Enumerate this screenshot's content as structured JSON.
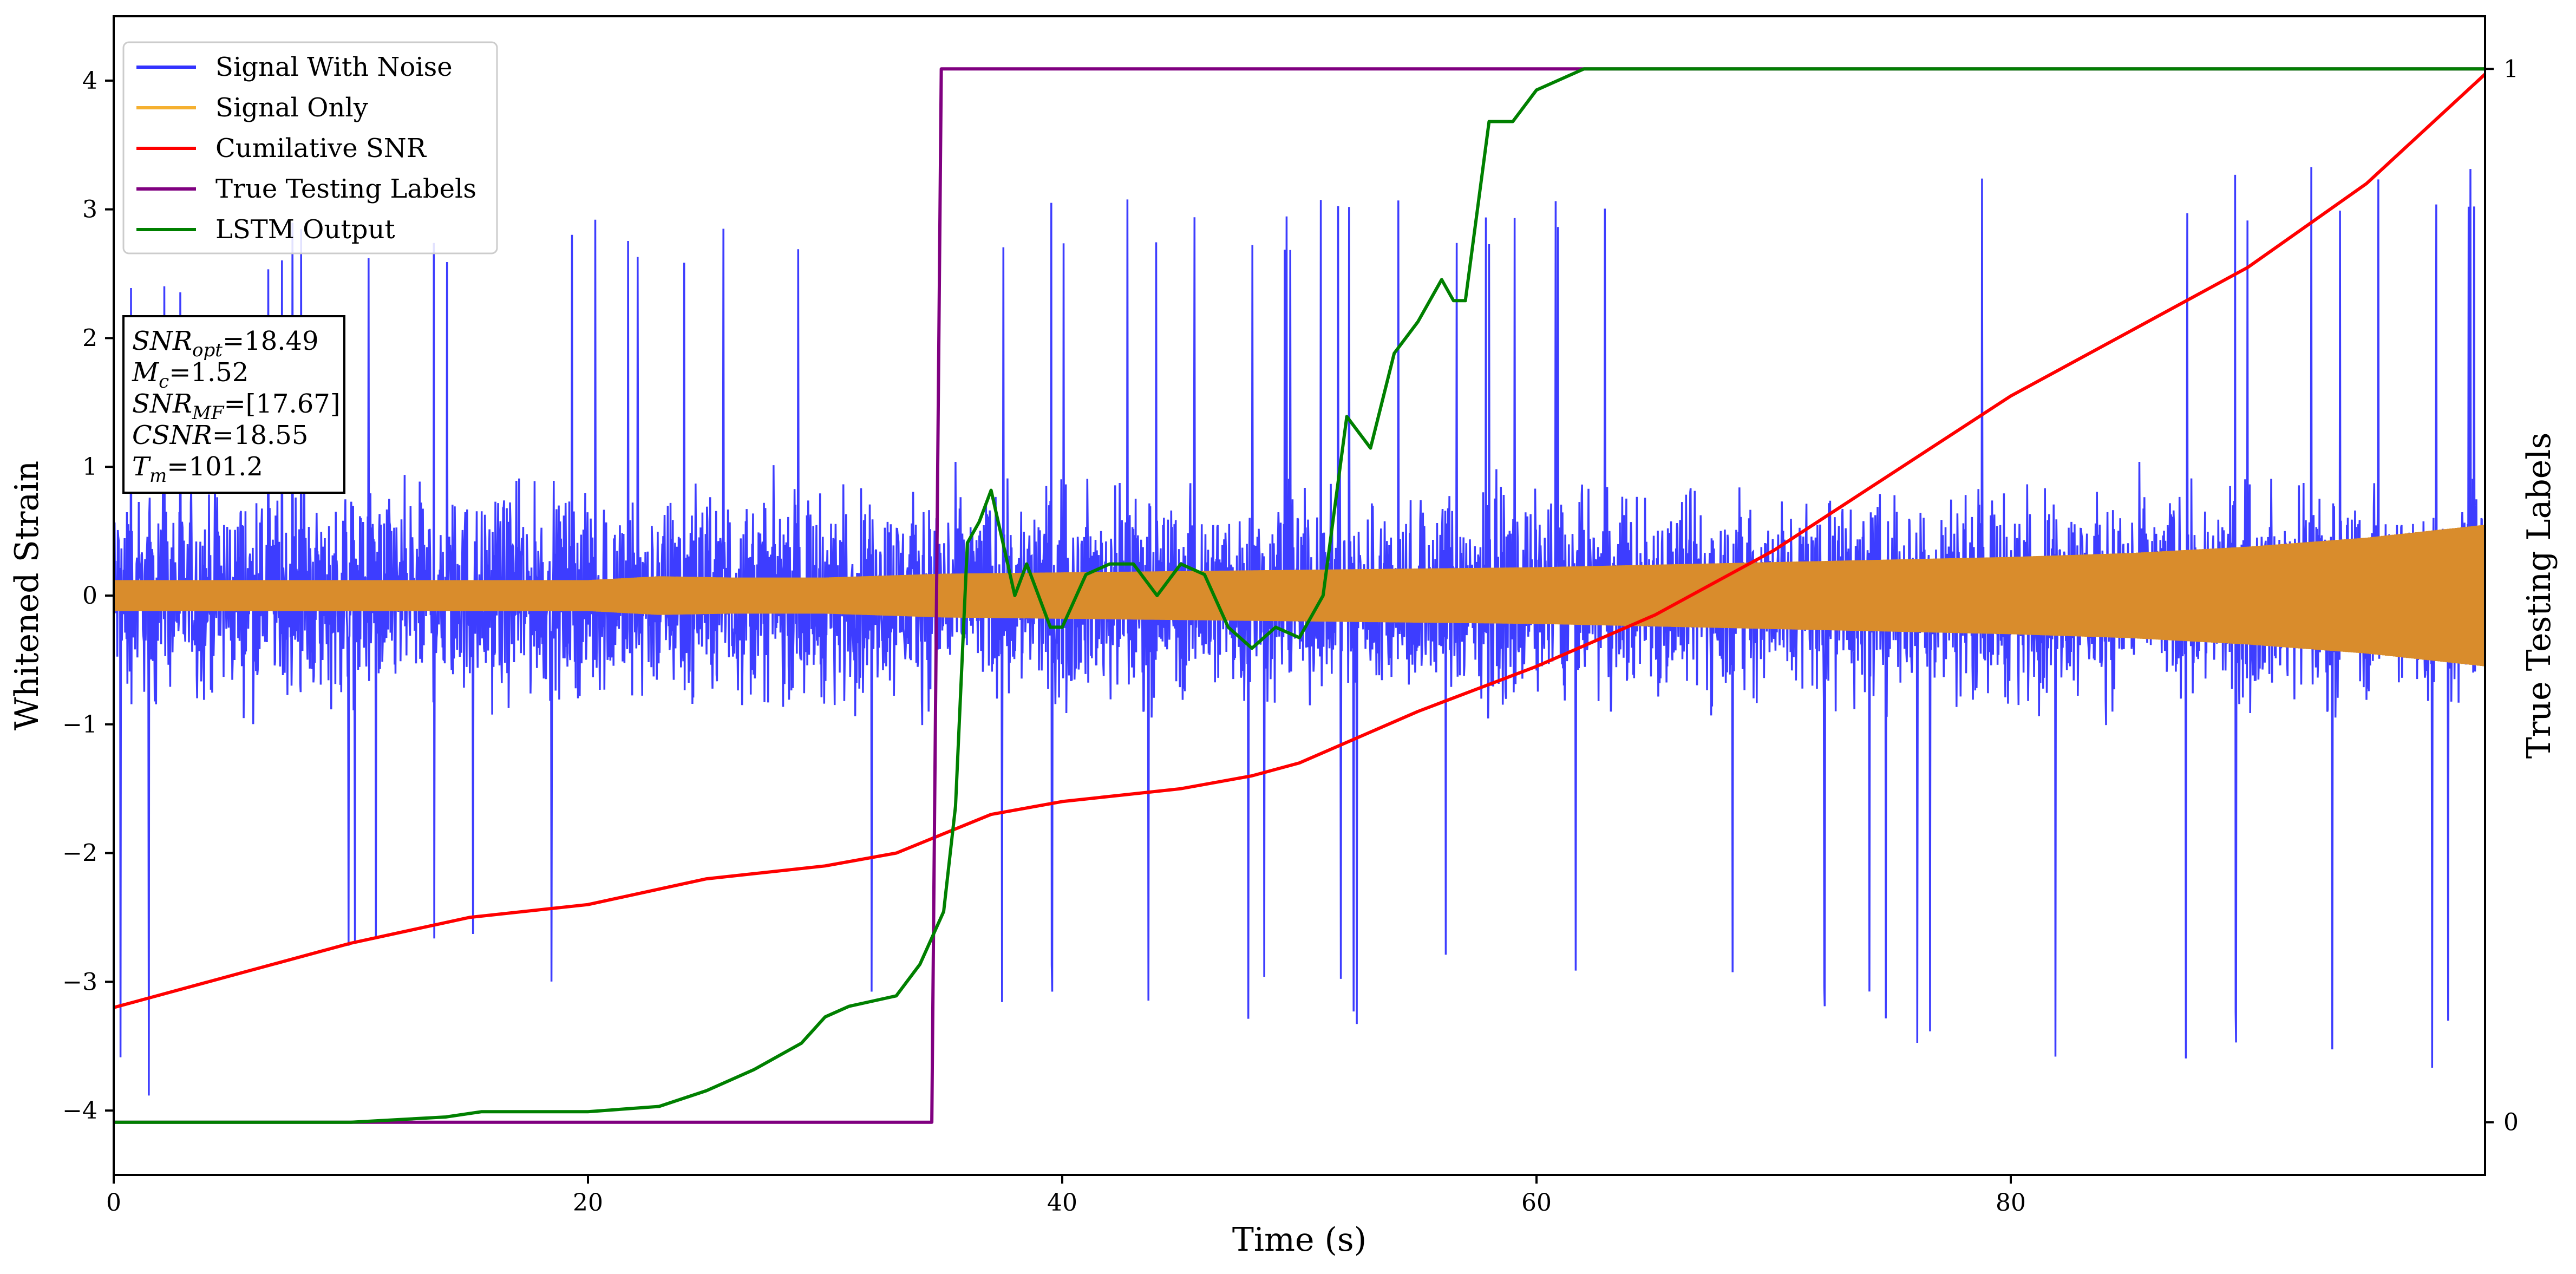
{
  "chart_data": {
    "type": "line",
    "xlabel": "Time (s)",
    "ylabel": "Whitened Strain",
    "y2label": "True Testing Labels",
    "xlim": [
      0,
      100
    ],
    "ylim": [
      -4.5,
      4.5
    ],
    "y2lim": [
      -0.05,
      1.05
    ],
    "xticks": [
      0,
      20,
      40,
      60,
      80
    ],
    "yticks": [
      -4,
      -3,
      -2,
      -1,
      0,
      1,
      2,
      3,
      4
    ],
    "y2ticks": [
      0,
      1
    ],
    "grid": false,
    "legend_position": "top-left",
    "legend": [
      {
        "label": "Signal With Noise",
        "color": "#3333ff"
      },
      {
        "label": "Signal Only",
        "color": "#f5b030"
      },
      {
        "label": "Cumilative SNR",
        "color": "#ff0000"
      },
      {
        "label": "True Testing Labels",
        "color": "#800080"
      },
      {
        "label": "LSTM Output",
        "color": "#008000"
      }
    ],
    "series": [
      {
        "name": "Signal With Noise",
        "axis": "left",
        "color": "#3333ff",
        "x": [
          0,
          10,
          20,
          30,
          40,
          50,
          60,
          70,
          80,
          90,
          100
        ],
        "y_low": [
          -4.05,
          -3.0,
          -3.0,
          -3.5,
          -3.2,
          -3.5,
          -3.0,
          -3.0,
          -4.1,
          -3.6,
          -3.9
        ],
        "y_high": [
          2.6,
          3.0,
          3.0,
          3.0,
          3.1,
          3.1,
          3.1,
          3.7,
          3.6,
          3.3,
          3.5
        ]
      },
      {
        "name": "Signal Only",
        "axis": "left",
        "color": "#d98c2c",
        "x": [
          0,
          10,
          20,
          23,
          26,
          30,
          35,
          40,
          50,
          60,
          70,
          80,
          85,
          90,
          95,
          100
        ],
        "amplitude": [
          0.12,
          0.12,
          0.12,
          0.15,
          0.14,
          0.14,
          0.17,
          0.18,
          0.2,
          0.22,
          0.26,
          0.3,
          0.33,
          0.38,
          0.45,
          0.55
        ]
      },
      {
        "name": "Cumilative SNR",
        "axis": "left",
        "color": "#ff0000",
        "x": [
          0,
          5,
          10,
          15,
          20,
          25,
          30,
          33,
          35,
          37,
          40,
          45,
          48,
          50,
          55,
          60,
          65,
          70,
          75,
          80,
          85,
          90,
          95,
          100
        ],
        "y": [
          -3.2,
          -2.95,
          -2.7,
          -2.5,
          -2.4,
          -2.2,
          -2.1,
          -2.0,
          -1.85,
          -1.7,
          -1.6,
          -1.5,
          -1.4,
          -1.3,
          -0.9,
          -0.55,
          -0.15,
          0.35,
          0.95,
          1.55,
          2.05,
          2.55,
          3.2,
          4.05
        ]
      },
      {
        "name": "True Testing Labels",
        "axis": "right",
        "color": "#800080",
        "x": [
          0,
          34.5,
          34.9,
          100
        ],
        "y": [
          0,
          0,
          1,
          1
        ]
      },
      {
        "name": "LSTM Output",
        "axis": "right",
        "color": "#008000",
        "x": [
          0,
          10,
          14,
          15.5,
          20,
          23,
          25,
          27,
          29,
          30,
          31,
          32,
          33,
          34,
          35,
          35.5,
          36,
          36.5,
          37,
          37.5,
          38,
          38.5,
          39,
          39.5,
          40,
          41,
          42,
          43,
          44,
          45,
          46,
          47,
          48,
          49,
          50,
          51,
          52,
          53,
          54,
          55,
          56,
          56.5,
          57,
          58,
          59,
          60,
          62,
          65,
          70,
          100
        ],
        "y": [
          0,
          0,
          0.005,
          0.01,
          0.01,
          0.015,
          0.03,
          0.05,
          0.075,
          0.1,
          0.11,
          0.115,
          0.12,
          0.15,
          0.2,
          0.3,
          0.55,
          0.57,
          0.6,
          0.55,
          0.5,
          0.53,
          0.5,
          0.47,
          0.47,
          0.52,
          0.53,
          0.53,
          0.5,
          0.53,
          0.52,
          0.47,
          0.45,
          0.47,
          0.46,
          0.5,
          0.67,
          0.64,
          0.73,
          0.76,
          0.8,
          0.78,
          0.78,
          0.95,
          0.95,
          0.98,
          1.0,
          1.0,
          1.0,
          1.0
        ]
      }
    ],
    "annotation": {
      "lines": [
        {
          "label": "SNR",
          "sub": "opt",
          "value": "=18.49"
        },
        {
          "label": "M",
          "sub": "c",
          "value": "=1.52"
        },
        {
          "label": "SNR",
          "sub": "MF",
          "value": "=[17.67]"
        },
        {
          "label": "CSNR",
          "sub": "",
          "value": "=18.55"
        },
        {
          "label": "T",
          "sub": "m",
          "value": "=101.2"
        }
      ]
    }
  }
}
